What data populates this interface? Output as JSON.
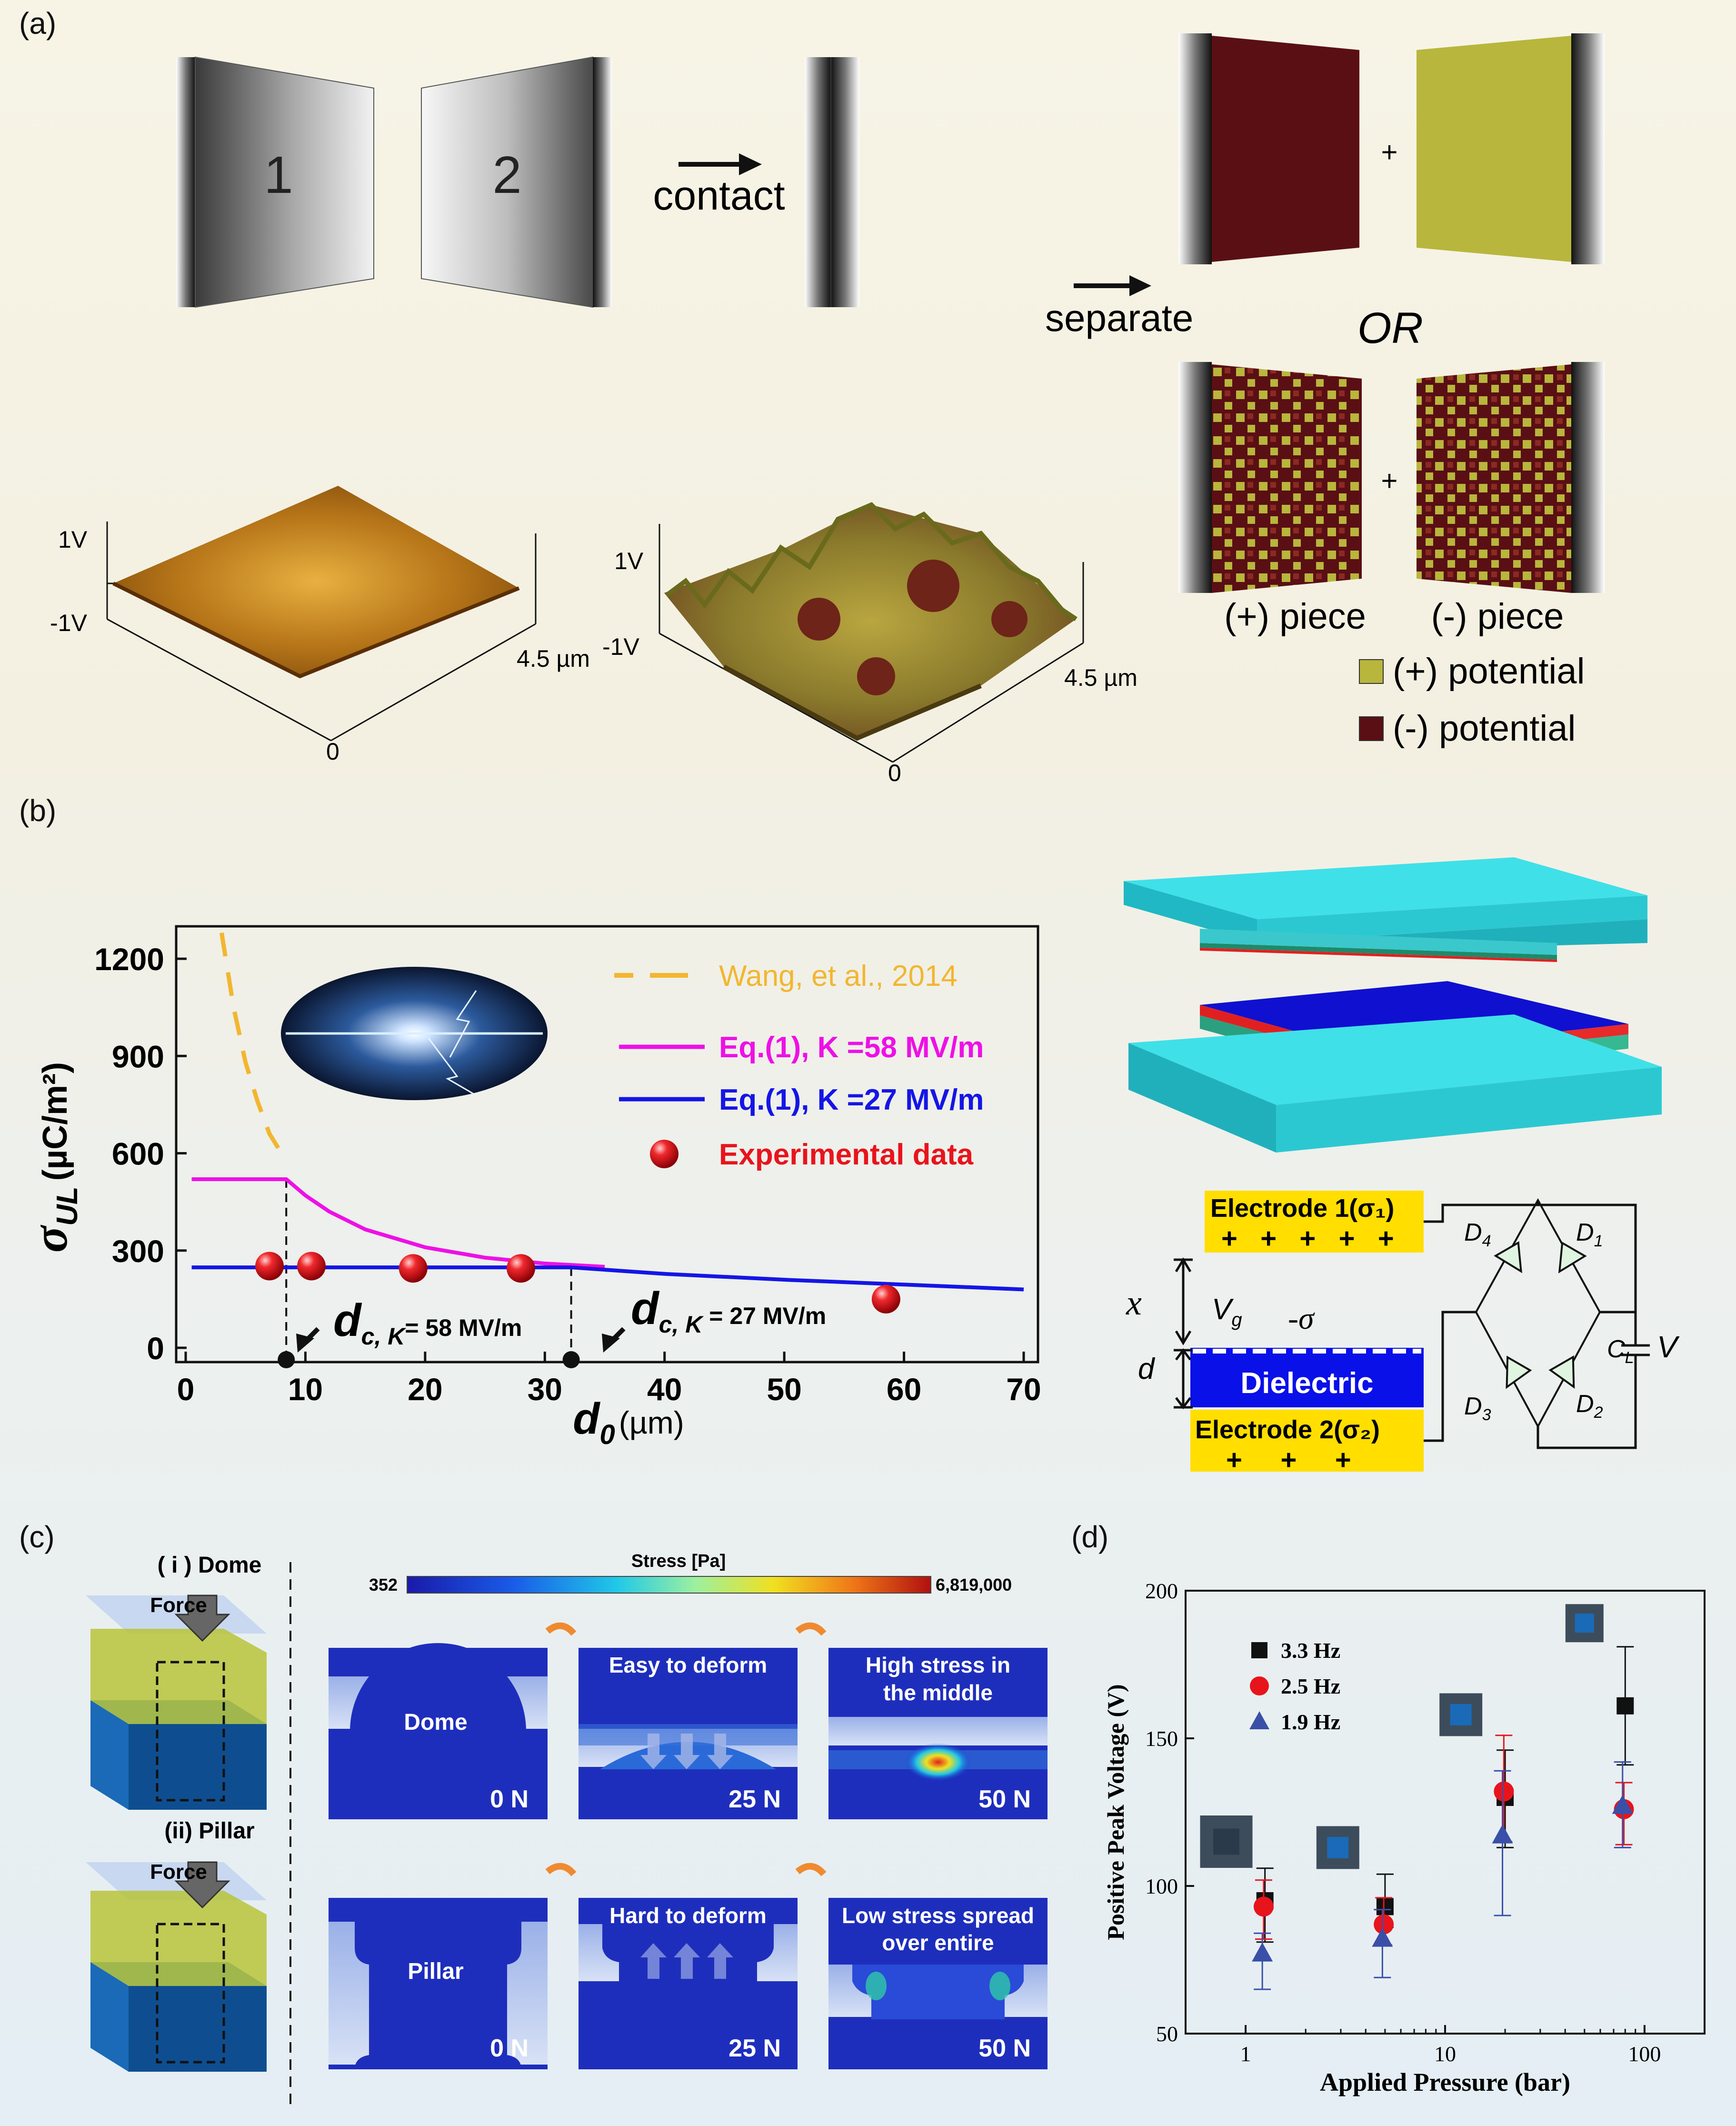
{
  "panels": {
    "a": "(a)",
    "b": "(b)",
    "c": "(c)",
    "d": "(d)"
  },
  "a": {
    "plate1": "1",
    "plate2": "2",
    "contact": "contact",
    "separate": "separate",
    "plus1": "+",
    "or": "OR",
    "plus2": "+",
    "pos_piece": "(+) piece",
    "neg_piece": "(-) piece",
    "legend_pos": "(+) potential",
    "legend_neg": "(-) potential",
    "colors": {
      "pos": "#b8b63c",
      "neg": "#5a0f14"
    },
    "afm1": {
      "top": "1V",
      "bottom": "-1V",
      "size": "4.5 µm",
      "zero": "0"
    },
    "afm2": {
      "top": "1V",
      "bottom": "-1V",
      "size": "4.5 µm",
      "zero": "0"
    }
  },
  "b": {
    "ylabel_main": "σ",
    "ylabel_sub": "UL",
    "ylabel_unit": "(µC/m²)",
    "xlabel_main": "d",
    "xlabel_sub": "0",
    "xlabel_unit": "(µm)",
    "dc1_main": "d",
    "dc1_sub": "c, K",
    "dc1_rest": "= 58 MV/m",
    "dc2_main": "d",
    "dc2_sub": "c, K",
    "dc2_rest": " = 27 MV/m",
    "circuit": {
      "electrode1": "Electrode 1(σ₁)",
      "electrode1_charges": "+   +   +   +   +",
      "electrode2": "Electrode 2(σ₂)",
      "electrode2_charges": "+     +     +",
      "dielectric": "Dielectric",
      "x": "x",
      "d": "d",
      "vg": "V",
      "vg_sub": "g",
      "sigma": "-σ",
      "D1": "D",
      "D1s": "1",
      "D2": "D",
      "D2s": "2",
      "D3": "D",
      "D3s": "3",
      "D4": "D",
      "D4s": "4",
      "CL": "C",
      "CLs": "L",
      "V": "V"
    }
  },
  "chart_data": [
    {
      "type": "line",
      "xlim": [
        0,
        70
      ],
      "ylim": [
        0,
        1300
      ],
      "x_ticks": [
        "0",
        "10",
        "20",
        "30",
        "40",
        "50",
        "60",
        "70"
      ],
      "y_ticks": [
        "0",
        "300",
        "600",
        "900",
        "1200"
      ],
      "x_tick_values": [
        0,
        10,
        20,
        30,
        40,
        50,
        60,
        70
      ],
      "y_tick_values": [
        0,
        300,
        600,
        900,
        1200
      ],
      "series": [
        {
          "name": "Wang, et al., 2014",
          "color": "#f2b630",
          "style": "dashed",
          "x": [
            3,
            4,
            5,
            6,
            7,
            8
          ],
          "y": [
            1280,
            1050,
            880,
            760,
            660,
            600
          ]
        },
        {
          "name": "Eq.(1), K =58 MV/m",
          "color": "#ee10e6",
          "style": "solid",
          "x": [
            0.5,
            8.4,
            10,
            12,
            15,
            20,
            25,
            30,
            35
          ],
          "y": [
            520,
            520,
            470,
            420,
            365,
            310,
            278,
            260,
            250
          ]
        },
        {
          "name": "Eq.(1), K =27 MV/m",
          "color": "#1515e6",
          "style": "solid",
          "x": [
            0.5,
            32.2,
            40,
            50,
            60,
            70
          ],
          "y": [
            248,
            248,
            228,
            210,
            195,
            180
          ]
        },
        {
          "name": "Experimental data",
          "color": "#e8141c",
          "style": "points",
          "x": [
            7,
            10.5,
            19,
            28,
            58.5
          ],
          "y": [
            252,
            252,
            245,
            245,
            150
          ]
        }
      ],
      "critical_points": [
        8.4,
        32.2
      ]
    },
    {
      "type": "scatter",
      "xlabel": "Applied Pressure (bar)",
      "ylabel": "Positive Peak Voltage (V)",
      "x_scale": "log",
      "xlim": [
        0.5,
        200
      ],
      "ylim": [
        50,
        200
      ],
      "x_ticks": [
        "1",
        "10",
        "100"
      ],
      "x_tick_values": [
        1,
        10,
        100
      ],
      "y_ticks": [
        "50",
        "100",
        "150",
        "200"
      ],
      "y_tick_values": [
        50,
        100,
        150,
        200
      ],
      "x": [
        1.25,
        5,
        20,
        80
      ],
      "series": [
        {
          "name": "3.3 Hz",
          "color": "#111111",
          "marker": "square",
          "y": [
            95,
            93,
            130,
            161
          ],
          "err_lo": [
            81,
            86,
            113,
            141
          ],
          "err_hi": [
            106,
            104,
            146,
            181
          ]
        },
        {
          "name": "2.5 Hz",
          "color": "#e8141c",
          "marker": "circle",
          "y": [
            93,
            87,
            132,
            126
          ],
          "err_lo": [
            82,
            80,
            115,
            114
          ],
          "err_hi": [
            102,
            96,
            151,
            135
          ]
        },
        {
          "name": "1.9 Hz",
          "color": "#3a4fa8",
          "marker": "triangle",
          "y": [
            77,
            82,
            117,
            127
          ],
          "err_lo": [
            65,
            69,
            90,
            113
          ],
          "err_hi": [
            84,
            92,
            139,
            142
          ]
        }
      ]
    }
  ],
  "c": {
    "dome_label": "( i ) Dome",
    "pillar_label": "(ii) Pillar",
    "force": "Force",
    "stress_title": "Stress [Pa]",
    "stress_min": "352",
    "stress_max": "6,819,000",
    "dome": "Dome",
    "pillar": "Pillar",
    "n0": "0 N",
    "n25": "25 N",
    "n50": "50 N",
    "easy1": "Easy to deform",
    "high1": "High stress in",
    "high2": "the middle",
    "hard1": "Hard to deform",
    "low1": "Low stress spread",
    "low2": "over entire"
  }
}
